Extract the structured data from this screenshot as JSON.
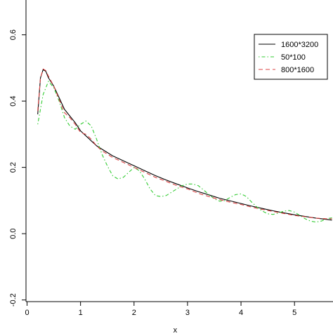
{
  "chart_data": {
    "type": "line",
    "title": "",
    "xlabel": "x",
    "ylabel": "",
    "xlim": [
      -0.02,
      5.72
    ],
    "ylim": [
      -0.205,
      0.705
    ],
    "x_ticks": [
      0,
      1,
      2,
      3,
      4,
      5
    ],
    "y_ticks": [
      -0.2,
      0.0,
      0.2,
      0.4,
      0.6
    ],
    "x_tick_labels": [
      "0",
      "1",
      "2",
      "3",
      "4",
      "5"
    ],
    "y_tick_labels": [
      "-0.2",
      "0.0",
      "0.2",
      "0.4",
      "0.6"
    ],
    "grid": false,
    "legend_position": "top-right",
    "series": [
      {
        "name": "1600*3200",
        "color": "#000000",
        "dash": "solid",
        "points": [
          [
            0.2,
            0.36
          ],
          [
            0.25,
            0.47
          ],
          [
            0.3,
            0.495
          ],
          [
            0.35,
            0.49
          ],
          [
            0.4,
            0.47
          ],
          [
            0.5,
            0.445
          ],
          [
            0.6,
            0.41
          ],
          [
            0.7,
            0.375
          ],
          [
            0.8,
            0.355
          ],
          [
            0.9,
            0.335
          ],
          [
            1.0,
            0.31
          ],
          [
            1.1,
            0.295
          ],
          [
            1.2,
            0.28
          ],
          [
            1.3,
            0.265
          ],
          [
            1.4,
            0.255
          ],
          [
            1.5,
            0.245
          ],
          [
            1.6,
            0.235
          ],
          [
            1.8,
            0.22
          ],
          [
            2.0,
            0.205
          ],
          [
            2.2,
            0.19
          ],
          [
            2.4,
            0.175
          ],
          [
            2.6,
            0.162
          ],
          [
            2.8,
            0.15
          ],
          [
            3.0,
            0.138
          ],
          [
            3.2,
            0.127
          ],
          [
            3.4,
            0.117
          ],
          [
            3.6,
            0.107
          ],
          [
            3.8,
            0.099
          ],
          [
            4.0,
            0.091
          ],
          [
            4.2,
            0.083
          ],
          [
            4.4,
            0.076
          ],
          [
            4.6,
            0.069
          ],
          [
            4.8,
            0.063
          ],
          [
            5.0,
            0.057
          ],
          [
            5.2,
            0.052
          ],
          [
            5.4,
            0.047
          ],
          [
            5.6,
            0.043
          ],
          [
            5.7,
            0.041
          ]
        ]
      },
      {
        "name": "50*100",
        "color": "#33cc33",
        "dash": "dotdash",
        "points": [
          [
            0.2,
            0.33
          ],
          [
            0.3,
            0.42
          ],
          [
            0.4,
            0.46
          ],
          [
            0.5,
            0.44
          ],
          [
            0.6,
            0.4
          ],
          [
            0.7,
            0.35
          ],
          [
            0.8,
            0.325
          ],
          [
            0.9,
            0.315
          ],
          [
            1.0,
            0.33
          ],
          [
            1.1,
            0.34
          ],
          [
            1.2,
            0.325
          ],
          [
            1.3,
            0.285
          ],
          [
            1.4,
            0.24
          ],
          [
            1.5,
            0.205
          ],
          [
            1.6,
            0.175
          ],
          [
            1.7,
            0.165
          ],
          [
            1.8,
            0.17
          ],
          [
            1.9,
            0.185
          ],
          [
            2.0,
            0.2
          ],
          [
            2.1,
            0.19
          ],
          [
            2.2,
            0.165
          ],
          [
            2.3,
            0.135
          ],
          [
            2.4,
            0.115
          ],
          [
            2.5,
            0.112
          ],
          [
            2.6,
            0.115
          ],
          [
            2.7,
            0.125
          ],
          [
            2.8,
            0.135
          ],
          [
            2.9,
            0.145
          ],
          [
            3.0,
            0.15
          ],
          [
            3.1,
            0.15
          ],
          [
            3.2,
            0.145
          ],
          [
            3.3,
            0.132
          ],
          [
            3.4,
            0.118
          ],
          [
            3.5,
            0.105
          ],
          [
            3.6,
            0.098
          ],
          [
            3.7,
            0.1
          ],
          [
            3.8,
            0.11
          ],
          [
            3.9,
            0.118
          ],
          [
            4.0,
            0.12
          ],
          [
            4.1,
            0.112
          ],
          [
            4.2,
            0.095
          ],
          [
            4.3,
            0.08
          ],
          [
            4.4,
            0.068
          ],
          [
            4.5,
            0.06
          ],
          [
            4.6,
            0.058
          ],
          [
            4.7,
            0.062
          ],
          [
            4.8,
            0.068
          ],
          [
            4.9,
            0.07
          ],
          [
            5.0,
            0.065
          ],
          [
            5.1,
            0.055
          ],
          [
            5.2,
            0.045
          ],
          [
            5.3,
            0.038
          ],
          [
            5.4,
            0.035
          ],
          [
            5.5,
            0.038
          ],
          [
            5.6,
            0.045
          ],
          [
            5.7,
            0.048
          ]
        ]
      },
      {
        "name": "800*1600",
        "color": "#dd4444",
        "dash": "dashed",
        "points": [
          [
            0.2,
            0.37
          ],
          [
            0.25,
            0.47
          ],
          [
            0.3,
            0.497
          ],
          [
            0.35,
            0.492
          ],
          [
            0.4,
            0.475
          ],
          [
            0.5,
            0.445
          ],
          [
            0.6,
            0.405
          ],
          [
            0.7,
            0.365
          ],
          [
            0.8,
            0.35
          ],
          [
            0.9,
            0.33
          ],
          [
            1.0,
            0.305
          ],
          [
            1.1,
            0.3
          ],
          [
            1.2,
            0.285
          ],
          [
            1.3,
            0.265
          ],
          [
            1.4,
            0.25
          ],
          [
            1.5,
            0.24
          ],
          [
            1.6,
            0.23
          ],
          [
            1.8,
            0.215
          ],
          [
            2.0,
            0.2
          ],
          [
            2.2,
            0.185
          ],
          [
            2.4,
            0.17
          ],
          [
            2.6,
            0.158
          ],
          [
            2.8,
            0.145
          ],
          [
            3.0,
            0.135
          ],
          [
            3.2,
            0.122
          ],
          [
            3.4,
            0.112
          ],
          [
            3.6,
            0.103
          ],
          [
            3.8,
            0.095
          ],
          [
            4.0,
            0.088
          ],
          [
            4.2,
            0.08
          ],
          [
            4.4,
            0.073
          ],
          [
            4.6,
            0.067
          ],
          [
            4.8,
            0.061
          ],
          [
            5.0,
            0.055
          ],
          [
            5.2,
            0.051
          ],
          [
            5.4,
            0.047
          ],
          [
            5.6,
            0.045
          ],
          [
            5.7,
            0.045
          ]
        ]
      }
    ]
  }
}
